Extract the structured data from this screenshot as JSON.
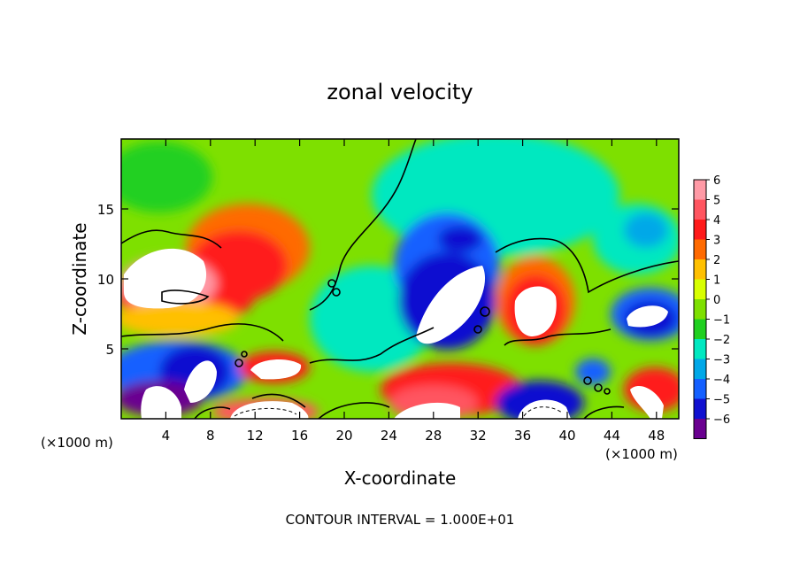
{
  "chart_data": {
    "type": "heatmap",
    "title": "zonal velocity",
    "xlabel": "X-coordinate",
    "ylabel": "Z-coordinate",
    "x_unit_label": "(×1000 m)",
    "y_unit_label": "(×1000 m)",
    "footer": "CONTOUR INTERVAL = 1.000E+01",
    "xlim": [
      0,
      50
    ],
    "ylim": [
      0,
      20
    ],
    "x_ticks": [
      4,
      8,
      12,
      16,
      20,
      24,
      28,
      32,
      36,
      40,
      44,
      48
    ],
    "y_ticks": [
      5,
      10,
      15
    ],
    "colorbar": {
      "ticks": [
        "6",
        "5",
        "4",
        "3",
        "2",
        "1",
        "0",
        "−1",
        "−2",
        "−3",
        "−4",
        "−5",
        "−6"
      ],
      "colors": [
        "#ff9aa6",
        "#ff5560",
        "#ff1a1a",
        "#ff6a00",
        "#ffc000",
        "#d8ff00",
        "#7ee000",
        "#20d020",
        "#00e8c0",
        "#00a8e8",
        "#1460ff",
        "#1010d0",
        "#6a0090"
      ],
      "saturated_color": "#ffffff"
    },
    "features": [
      {
        "sign": "positive",
        "x": 4.5,
        "z": 9.0,
        "peak": ">6"
      },
      {
        "sign": "positive",
        "x": 13.5,
        "z": 13.0,
        "peak": 4
      },
      {
        "sign": "positive",
        "x": 13.5,
        "z": 3.8,
        "peak": 5
      },
      {
        "sign": "positive",
        "x": 12.5,
        "z": 0.7,
        "peak": ">6"
      },
      {
        "sign": "positive",
        "x": 37.5,
        "z": 8.0,
        "peak": ">6"
      },
      {
        "sign": "positive",
        "x": 29.0,
        "z": 1.5,
        "peak": 5
      },
      {
        "sign": "positive",
        "x": 46.0,
        "z": 1.5,
        "peak": 5
      },
      {
        "sign": "negative",
        "x": 29.5,
        "z": 8.5,
        "peak": "<-6"
      },
      {
        "sign": "negative",
        "x": 29.0,
        "z": 12.5,
        "peak": -5
      },
      {
        "sign": "negative",
        "x": 7.0,
        "z": 3.0,
        "peak": "<-6"
      },
      {
        "sign": "negative",
        "x": 3.5,
        "z": 1.2,
        "peak": "<-6"
      },
      {
        "sign": "negative",
        "x": 37.5,
        "z": 1.0,
        "peak": "<-6"
      },
      {
        "sign": "negative",
        "x": 47.5,
        "z": 7.5,
        "peak": "<-6"
      },
      {
        "sign": "negative",
        "x": 42.0,
        "z": 3.5,
        "peak": -4
      }
    ]
  }
}
